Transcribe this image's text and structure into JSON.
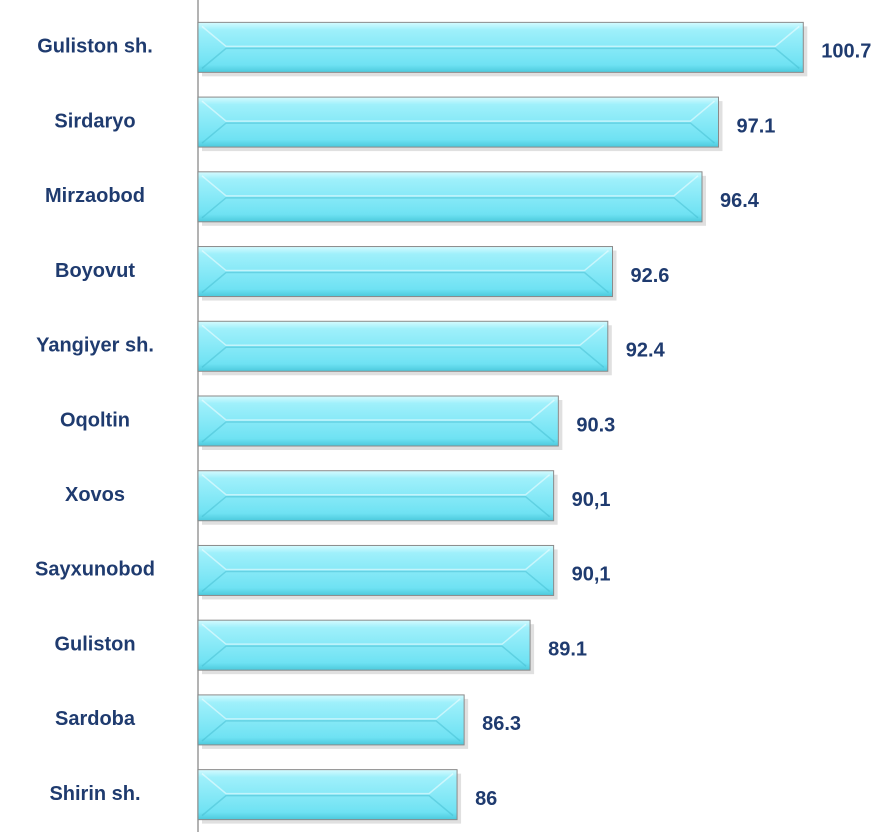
{
  "chart_data": {
    "type": "bar",
    "orientation": "horizontal",
    "categories": [
      "Guliston sh.",
      "Sirdaryo",
      "Mirzaobod",
      "Boyovut",
      "Yangiyer sh.",
      "Oqoltin",
      "Xovos",
      "Sayxunobod",
      "Guliston",
      "Sardoba",
      "Shirin sh."
    ],
    "values": [
      100.7,
      97.1,
      96.4,
      92.6,
      92.4,
      90.3,
      90.1,
      90.1,
      89.1,
      86.3,
      86
    ],
    "value_labels": [
      "100.7",
      "97.1",
      "96.4",
      "92.6",
      "92.4",
      "90.3",
      "90,1",
      "90,1",
      "89.1",
      "86.3",
      "86"
    ],
    "color": "#7fe8f6",
    "xlim": [
      75,
      104
    ]
  }
}
